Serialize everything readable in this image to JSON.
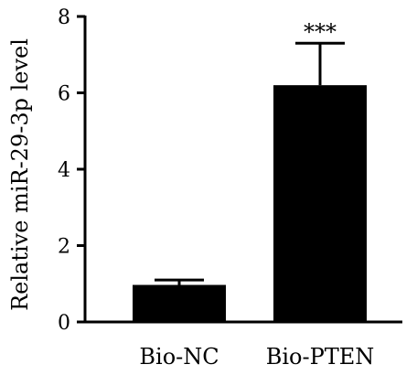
{
  "chart_data": {
    "type": "bar",
    "categories": [
      "Bio-NC",
      "Bio-PTEN"
    ],
    "values": [
      0.97,
      6.2
    ],
    "error": [
      0.13,
      1.1
    ],
    "annotations": [
      "",
      "***"
    ],
    "xlabel": "",
    "ylabel": "Relative miR-29-3p level",
    "ylim": [
      0,
      8
    ],
    "yticks": [
      0,
      2,
      4,
      6,
      8
    ],
    "grid": false,
    "legend": "none",
    "bar_color": "#000000"
  }
}
